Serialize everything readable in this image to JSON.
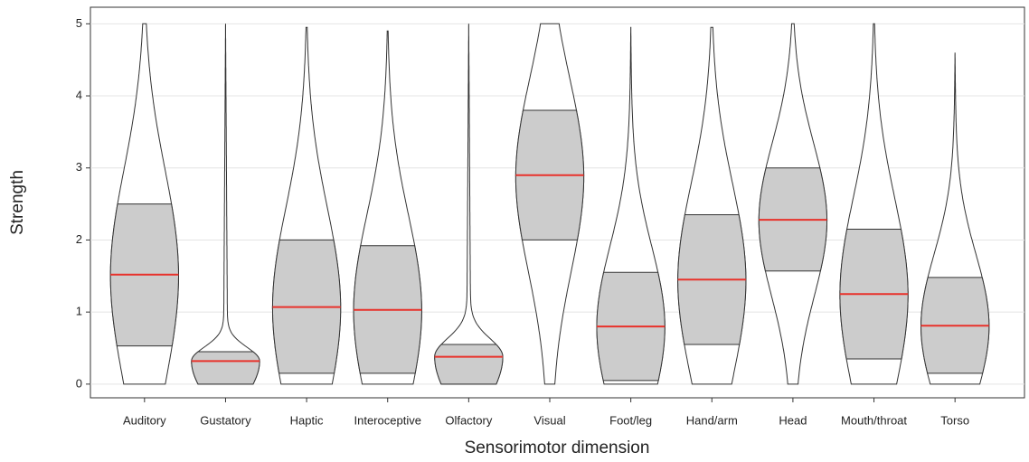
{
  "chart_data": {
    "type": "violin",
    "x_label": "Sensorimotor dimension",
    "y_label": "Strength",
    "categories": [
      "Auditory",
      "Gustatory",
      "Haptic",
      "Interoceptive",
      "Olfactory",
      "Visual",
      "Foot/leg",
      "Hand/arm",
      "Head",
      "Mouth/throat",
      "Torso"
    ],
    "min": [
      0,
      0,
      0,
      0,
      0,
      0,
      0,
      0,
      0,
      0,
      0
    ],
    "q1": [
      0.53,
      0.0,
      0.15,
      0.15,
      0.0,
      2.0,
      0.05,
      0.55,
      1.57,
      0.35,
      0.15
    ],
    "median": [
      1.52,
      0.32,
      1.07,
      1.03,
      0.38,
      2.9,
      0.8,
      1.45,
      2.28,
      1.25,
      0.81
    ],
    "q3": [
      2.5,
      0.45,
      2.0,
      1.92,
      0.55,
      3.8,
      1.55,
      2.35,
      3.0,
      2.15,
      1.48
    ],
    "max": [
      5,
      5,
      4.95,
      4.9,
      5,
      5,
      4.95,
      4.95,
      5,
      5,
      4.6
    ],
    "violin_color": "#ffffff",
    "iqr_color": "#cccccc",
    "median_color": "#e8322b",
    "ylim": [
      -0.19,
      5.23
    ],
    "yticks": [
      0,
      1,
      2,
      3,
      4,
      5
    ],
    "grid": true
  }
}
